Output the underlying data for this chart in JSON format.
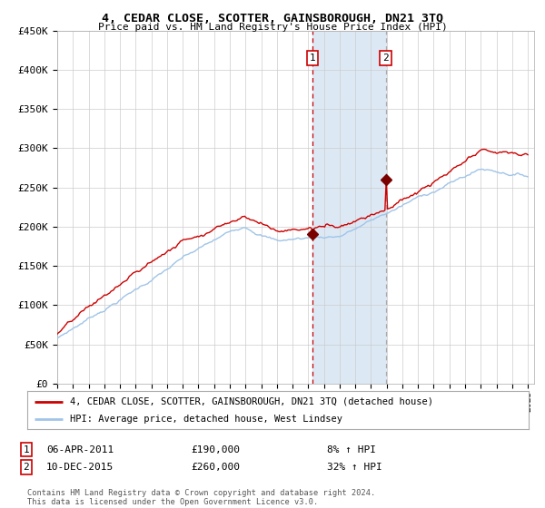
{
  "title": "4, CEDAR CLOSE, SCOTTER, GAINSBOROUGH, DN21 3TQ",
  "subtitle": "Price paid vs. HM Land Registry's House Price Index (HPI)",
  "ylabel_ticks": [
    "£0",
    "£50K",
    "£100K",
    "£150K",
    "£200K",
    "£250K",
    "£300K",
    "£350K",
    "£400K",
    "£450K"
  ],
  "ytick_values": [
    0,
    50000,
    100000,
    150000,
    200000,
    250000,
    300000,
    350000,
    400000,
    450000
  ],
  "year_start": 1995,
  "year_end": 2025,
  "sale1_year": 2011.27,
  "sale1_price": 190000,
  "sale1_label": "06-APR-2011",
  "sale1_hpi_pct": "8%",
  "sale2_year": 2015.94,
  "sale2_price": 260000,
  "sale2_label": "10-DEC-2015",
  "sale2_hpi_pct": "32%",
  "legend_property": "4, CEDAR CLOSE, SCOTTER, GAINSBOROUGH, DN21 3TQ (detached house)",
  "legend_hpi": "HPI: Average price, detached house, West Lindsey",
  "hpi_line_color": "#a0c4e8",
  "property_line_color": "#cc0000",
  "sale_marker_color": "#7a0000",
  "shading_color": "#dce9f5",
  "dashed_line_color": "#cc0000",
  "footnote": "Contains HM Land Registry data © Crown copyright and database right 2024.\nThis data is licensed under the Open Government Licence v3.0.",
  "background_color": "#ffffff",
  "grid_color": "#cccccc"
}
